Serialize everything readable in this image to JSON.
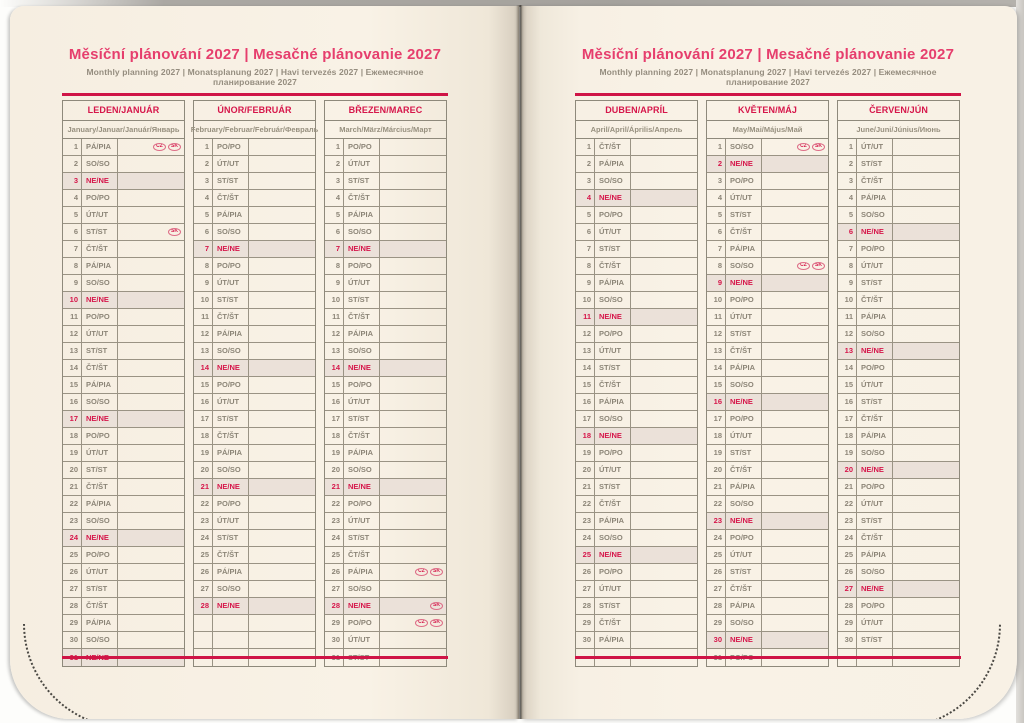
{
  "colors": {
    "title_pink": "#e63e6d",
    "rule_red": "#cf1446",
    "holiday_red": "#d6164a",
    "day_text_gray": "#8c8577",
    "subtitle_gray": "#958d7f",
    "table_border": "#8e897b",
    "sunday_row_bg": "#ebe1d9",
    "page_bg": "#f8f1e5"
  },
  "spread": {
    "left_page": {
      "title": "Měsíční plánování 2027 | Mesačné plánovanie 2027",
      "subtitle": "Monthly planning 2027 | Monatsplanung 2027 | Havi tervezés 2027 | Ежемесячное планирование 2027",
      "months": [
        {
          "header": "LEDEN/JANUÁR",
          "subheader": "January/Januar/Január/Январь",
          "rows": [
            {
              "d": 1,
              "w": "PÁ/PIA",
              "b": [
                "CZ",
                "SK"
              ]
            },
            {
              "d": 2,
              "w": "SO/SO"
            },
            {
              "d": 3,
              "w": "NE/NE"
            },
            {
              "d": 4,
              "w": "PO/PO"
            },
            {
              "d": 5,
              "w": "ÚT/UT"
            },
            {
              "d": 6,
              "w": "ST/ST",
              "b": [
                "SK"
              ]
            },
            {
              "d": 7,
              "w": "ČT/ŠT"
            },
            {
              "d": 8,
              "w": "PÁ/PIA"
            },
            {
              "d": 9,
              "w": "SO/SO"
            },
            {
              "d": 10,
              "w": "NE/NE"
            },
            {
              "d": 11,
              "w": "PO/PO"
            },
            {
              "d": 12,
              "w": "ÚT/UT"
            },
            {
              "d": 13,
              "w": "ST/ST"
            },
            {
              "d": 14,
              "w": "ČT/ŠT"
            },
            {
              "d": 15,
              "w": "PÁ/PIA"
            },
            {
              "d": 16,
              "w": "SO/SO"
            },
            {
              "d": 17,
              "w": "NE/NE"
            },
            {
              "d": 18,
              "w": "PO/PO"
            },
            {
              "d": 19,
              "w": "ÚT/UT"
            },
            {
              "d": 20,
              "w": "ST/ST"
            },
            {
              "d": 21,
              "w": "ČT/ŠT"
            },
            {
              "d": 22,
              "w": "PÁ/PIA"
            },
            {
              "d": 23,
              "w": "SO/SO"
            },
            {
              "d": 24,
              "w": "NE/NE"
            },
            {
              "d": 25,
              "w": "PO/PO"
            },
            {
              "d": 26,
              "w": "ÚT/UT"
            },
            {
              "d": 27,
              "w": "ST/ST"
            },
            {
              "d": 28,
              "w": "ČT/ŠT"
            },
            {
              "d": 29,
              "w": "PÁ/PIA"
            },
            {
              "d": 30,
              "w": "SO/SO"
            },
            {
              "d": 31,
              "w": "NE/NE"
            }
          ]
        },
        {
          "header": "ÚNOR/FEBRUÁR",
          "subheader": "February/Februar/Február/Февраль",
          "rows": [
            {
              "d": 1,
              "w": "PO/PO"
            },
            {
              "d": 2,
              "w": "ÚT/UT"
            },
            {
              "d": 3,
              "w": "ST/ST"
            },
            {
              "d": 4,
              "w": "ČT/ŠT"
            },
            {
              "d": 5,
              "w": "PÁ/PIA"
            },
            {
              "d": 6,
              "w": "SO/SO"
            },
            {
              "d": 7,
              "w": "NE/NE"
            },
            {
              "d": 8,
              "w": "PO/PO"
            },
            {
              "d": 9,
              "w": "ÚT/UT"
            },
            {
              "d": 10,
              "w": "ST/ST"
            },
            {
              "d": 11,
              "w": "ČT/ŠT"
            },
            {
              "d": 12,
              "w": "PÁ/PIA"
            },
            {
              "d": 13,
              "w": "SO/SO"
            },
            {
              "d": 14,
              "w": "NE/NE"
            },
            {
              "d": 15,
              "w": "PO/PO"
            },
            {
              "d": 16,
              "w": "ÚT/UT"
            },
            {
              "d": 17,
              "w": "ST/ST"
            },
            {
              "d": 18,
              "w": "ČT/ŠT"
            },
            {
              "d": 19,
              "w": "PÁ/PIA"
            },
            {
              "d": 20,
              "w": "SO/SO"
            },
            {
              "d": 21,
              "w": "NE/NE"
            },
            {
              "d": 22,
              "w": "PO/PO"
            },
            {
              "d": 23,
              "w": "ÚT/UT"
            },
            {
              "d": 24,
              "w": "ST/ST"
            },
            {
              "d": 25,
              "w": "ČT/ŠT"
            },
            {
              "d": 26,
              "w": "PÁ/PIA"
            },
            {
              "d": 27,
              "w": "SO/SO"
            },
            {
              "d": 28,
              "w": "NE/NE"
            },
            {
              "d": "",
              "w": ""
            },
            {
              "d": "",
              "w": ""
            },
            {
              "d": "",
              "w": ""
            }
          ]
        },
        {
          "header": "BŘEZEN/MAREC",
          "subheader": "March/März/Március/Март",
          "rows": [
            {
              "d": 1,
              "w": "PO/PO"
            },
            {
              "d": 2,
              "w": "ÚT/UT"
            },
            {
              "d": 3,
              "w": "ST/ST"
            },
            {
              "d": 4,
              "w": "ČT/ŠT"
            },
            {
              "d": 5,
              "w": "PÁ/PIA"
            },
            {
              "d": 6,
              "w": "SO/SO"
            },
            {
              "d": 7,
              "w": "NE/NE"
            },
            {
              "d": 8,
              "w": "PO/PO"
            },
            {
              "d": 9,
              "w": "ÚT/UT"
            },
            {
              "d": 10,
              "w": "ST/ST"
            },
            {
              "d": 11,
              "w": "ČT/ŠT"
            },
            {
              "d": 12,
              "w": "PÁ/PIA"
            },
            {
              "d": 13,
              "w": "SO/SO"
            },
            {
              "d": 14,
              "w": "NE/NE"
            },
            {
              "d": 15,
              "w": "PO/PO"
            },
            {
              "d": 16,
              "w": "ÚT/UT"
            },
            {
              "d": 17,
              "w": "ST/ST"
            },
            {
              "d": 18,
              "w": "ČT/ŠT"
            },
            {
              "d": 19,
              "w": "PÁ/PIA"
            },
            {
              "d": 20,
              "w": "SO/SO"
            },
            {
              "d": 21,
              "w": "NE/NE"
            },
            {
              "d": 22,
              "w": "PO/PO"
            },
            {
              "d": 23,
              "w": "ÚT/UT"
            },
            {
              "d": 24,
              "w": "ST/ST"
            },
            {
              "d": 25,
              "w": "ČT/ŠT"
            },
            {
              "d": 26,
              "w": "PÁ/PIA",
              "b": [
                "CZ",
                "SK"
              ]
            },
            {
              "d": 27,
              "w": "SO/SO"
            },
            {
              "d": 28,
              "w": "NE/NE",
              "b": [
                "SK"
              ]
            },
            {
              "d": 29,
              "w": "PO/PO",
              "b": [
                "CZ",
                "SK"
              ]
            },
            {
              "d": 30,
              "w": "ÚT/UT"
            },
            {
              "d": 31,
              "w": "ST/ST"
            }
          ]
        }
      ]
    },
    "right_page": {
      "title": "Měsíční plánování 2027 | Mesačné plánovanie 2027",
      "subtitle": "Monthly planning 2027 | Monatsplanung 2027 | Havi tervezés 2027 | Ежемесячное планирование 2027",
      "months": [
        {
          "header": "DUBEN/APRÍL",
          "subheader": "April/April/Április/Апрель",
          "rows": [
            {
              "d": 1,
              "w": "ČT/ŠT"
            },
            {
              "d": 2,
              "w": "PÁ/PIA"
            },
            {
              "d": 3,
              "w": "SO/SO"
            },
            {
              "d": 4,
              "w": "NE/NE"
            },
            {
              "d": 5,
              "w": "PO/PO"
            },
            {
              "d": 6,
              "w": "ÚT/UT"
            },
            {
              "d": 7,
              "w": "ST/ST"
            },
            {
              "d": 8,
              "w": "ČT/ŠT"
            },
            {
              "d": 9,
              "w": "PÁ/PIA"
            },
            {
              "d": 10,
              "w": "SO/SO"
            },
            {
              "d": 11,
              "w": "NE/NE"
            },
            {
              "d": 12,
              "w": "PO/PO"
            },
            {
              "d": 13,
              "w": "ÚT/UT"
            },
            {
              "d": 14,
              "w": "ST/ST"
            },
            {
              "d": 15,
              "w": "ČT/ŠT"
            },
            {
              "d": 16,
              "w": "PÁ/PIA"
            },
            {
              "d": 17,
              "w": "SO/SO"
            },
            {
              "d": 18,
              "w": "NE/NE"
            },
            {
              "d": 19,
              "w": "PO/PO"
            },
            {
              "d": 20,
              "w": "ÚT/UT"
            },
            {
              "d": 21,
              "w": "ST/ST"
            },
            {
              "d": 22,
              "w": "ČT/ŠT"
            },
            {
              "d": 23,
              "w": "PÁ/PIA"
            },
            {
              "d": 24,
              "w": "SO/SO"
            },
            {
              "d": 25,
              "w": "NE/NE"
            },
            {
              "d": 26,
              "w": "PO/PO"
            },
            {
              "d": 27,
              "w": "ÚT/UT"
            },
            {
              "d": 28,
              "w": "ST/ST"
            },
            {
              "d": 29,
              "w": "ČT/ŠT"
            },
            {
              "d": 30,
              "w": "PÁ/PIA"
            },
            {
              "d": "",
              "w": ""
            }
          ]
        },
        {
          "header": "KVĚTEN/MÁJ",
          "subheader": "May/Mai/Május/Май",
          "rows": [
            {
              "d": 1,
              "w": "SO/SO",
              "b": [
                "CZ",
                "SK"
              ]
            },
            {
              "d": 2,
              "w": "NE/NE"
            },
            {
              "d": 3,
              "w": "PO/PO"
            },
            {
              "d": 4,
              "w": "ÚT/UT"
            },
            {
              "d": 5,
              "w": "ST/ST"
            },
            {
              "d": 6,
              "w": "ČT/ŠT"
            },
            {
              "d": 7,
              "w": "PÁ/PIA"
            },
            {
              "d": 8,
              "w": "SO/SO",
              "b": [
                "CZ",
                "SK"
              ]
            },
            {
              "d": 9,
              "w": "NE/NE"
            },
            {
              "d": 10,
              "w": "PO/PO"
            },
            {
              "d": 11,
              "w": "ÚT/UT"
            },
            {
              "d": 12,
              "w": "ST/ST"
            },
            {
              "d": 13,
              "w": "ČT/ŠT"
            },
            {
              "d": 14,
              "w": "PÁ/PIA"
            },
            {
              "d": 15,
              "w": "SO/SO"
            },
            {
              "d": 16,
              "w": "NE/NE"
            },
            {
              "d": 17,
              "w": "PO/PO"
            },
            {
              "d": 18,
              "w": "ÚT/UT"
            },
            {
              "d": 19,
              "w": "ST/ST"
            },
            {
              "d": 20,
              "w": "ČT/ŠT"
            },
            {
              "d": 21,
              "w": "PÁ/PIA"
            },
            {
              "d": 22,
              "w": "SO/SO"
            },
            {
              "d": 23,
              "w": "NE/NE"
            },
            {
              "d": 24,
              "w": "PO/PO"
            },
            {
              "d": 25,
              "w": "ÚT/UT"
            },
            {
              "d": 26,
              "w": "ST/ST"
            },
            {
              "d": 27,
              "w": "ČT/ŠT"
            },
            {
              "d": 28,
              "w": "PÁ/PIA"
            },
            {
              "d": 29,
              "w": "SO/SO"
            },
            {
              "d": 30,
              "w": "NE/NE"
            },
            {
              "d": 31,
              "w": "PO/PO"
            }
          ]
        },
        {
          "header": "ČERVEN/JÚN",
          "subheader": "June/Juni/Június/Июнь",
          "rows": [
            {
              "d": 1,
              "w": "ÚT/UT"
            },
            {
              "d": 2,
              "w": "ST/ST"
            },
            {
              "d": 3,
              "w": "ČT/ŠT"
            },
            {
              "d": 4,
              "w": "PÁ/PIA"
            },
            {
              "d": 5,
              "w": "SO/SO"
            },
            {
              "d": 6,
              "w": "NE/NE"
            },
            {
              "d": 7,
              "w": "PO/PO"
            },
            {
              "d": 8,
              "w": "ÚT/UT"
            },
            {
              "d": 9,
              "w": "ST/ST"
            },
            {
              "d": 10,
              "w": "ČT/ŠT"
            },
            {
              "d": 11,
              "w": "PÁ/PIA"
            },
            {
              "d": 12,
              "w": "SO/SO"
            },
            {
              "d": 13,
              "w": "NE/NE"
            },
            {
              "d": 14,
              "w": "PO/PO"
            },
            {
              "d": 15,
              "w": "ÚT/UT"
            },
            {
              "d": 16,
              "w": "ST/ST"
            },
            {
              "d": 17,
              "w": "ČT/ŠT"
            },
            {
              "d": 18,
              "w": "PÁ/PIA"
            },
            {
              "d": 19,
              "w": "SO/SO"
            },
            {
              "d": 20,
              "w": "NE/NE"
            },
            {
              "d": 21,
              "w": "PO/PO"
            },
            {
              "d": 22,
              "w": "ÚT/UT"
            },
            {
              "d": 23,
              "w": "ST/ST"
            },
            {
              "d": 24,
              "w": "ČT/ŠT"
            },
            {
              "d": 25,
              "w": "PÁ/PIA"
            },
            {
              "d": 26,
              "w": "SO/SO"
            },
            {
              "d": 27,
              "w": "NE/NE"
            },
            {
              "d": 28,
              "w": "PO/PO"
            },
            {
              "d": 29,
              "w": "ÚT/UT"
            },
            {
              "d": 30,
              "w": "ST/ST"
            },
            {
              "d": "",
              "w": ""
            }
          ]
        }
      ]
    }
  }
}
